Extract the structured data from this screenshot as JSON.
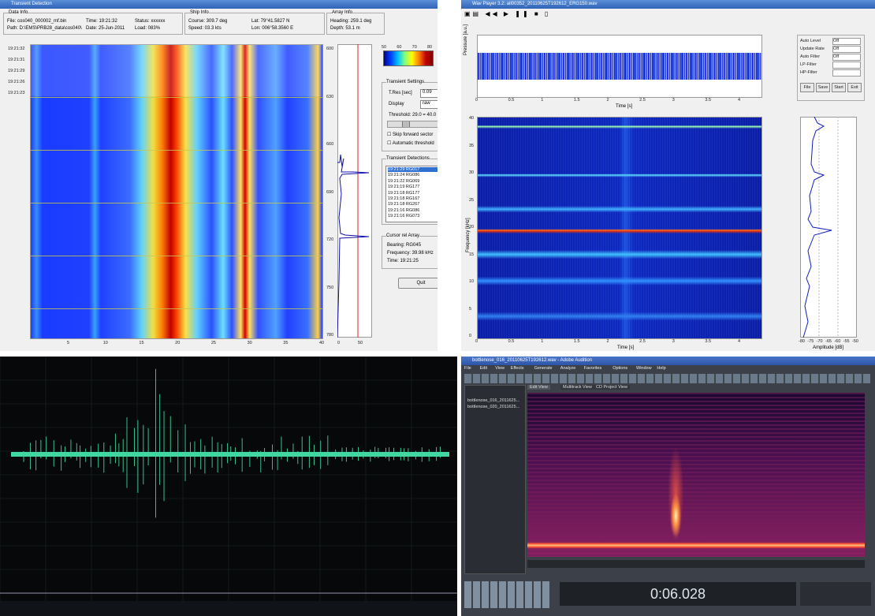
{
  "transient_window": {
    "title": "Transient Detection",
    "data_info": {
      "heading": "Data Info",
      "file": "File: cos040_000002_mf.bin",
      "path": "Path: D:\\EMS\\PRB28_data\\cos040\\",
      "time": "Time: 19:21:32",
      "date": "Date: 25-Jun-2011",
      "status": "Status: xxxxxx",
      "load": "Load: 083%"
    },
    "ship_info": {
      "heading": "Ship Info",
      "course": "Course: 309.7 deg",
      "speed": "Speed: 03.3 kts",
      "lat": "Lat: 79°41.5827 N",
      "lon": "Lon: 006°58.3560 E"
    },
    "array_info": {
      "heading": "Array Info",
      "array_heading": "Heading: 259.1 deg",
      "depth": "Depth: 53.1 m"
    },
    "time_labels": [
      "19:21:32",
      "19:21:31",
      "19:21:29",
      "19:21:26",
      "19:21:23"
    ],
    "x_ticks": [
      "5",
      "10",
      "15",
      "20",
      "25",
      "30",
      "35",
      "40"
    ],
    "range_ticks": [
      "600",
      "630",
      "660",
      "690",
      "720",
      "750",
      "780"
    ],
    "side_ticks": [
      "0",
      "50"
    ],
    "colorbar_ticks": [
      "50",
      "60",
      "70",
      "80"
    ],
    "transient_settings": {
      "heading": "Transient Settings",
      "tres_label": "T.Res [sec]",
      "tres_value": "0.09",
      "display_label": "Display",
      "display_value": "raw",
      "threshold": "Threshold: 29.0 = 40.0",
      "skip": "Skip forward sector",
      "auto": "Automatic threshold"
    },
    "detections": {
      "heading": "Transient Detections",
      "items": [
        "19:21:29 RG017",
        "19:21:24 RG086",
        "19:21:22 RG069",
        "19:21:19 RG177",
        "19:21:18 RG177",
        "19:21:18 RG167",
        "19:21:18 RG267",
        "19:21:16 RG086",
        "19:21:16 RG073"
      ]
    },
    "cursor": {
      "heading": "Cursor rel Array",
      "bearing": "Bearing: RG045",
      "frequency": "Frequency: 39.98 kHz",
      "time": "Time: 19:21:25"
    },
    "quit": "Quit"
  },
  "wav_player": {
    "title": "Wav Player 3.2: all00352_20110625T192612_ERG150.wav",
    "wave_y_label": "Pressure [a.u.]",
    "wave_x_label": "Time [s]",
    "wave_x_ticks": [
      "0",
      "0.5",
      "1",
      "1.5",
      "2",
      "2.5",
      "3",
      "3.5",
      "4"
    ],
    "spec_y_label": "Frequency [kHz]",
    "spec_y_ticks": [
      "40",
      "35",
      "30",
      "25",
      "20",
      "15",
      "10",
      "5",
      "0"
    ],
    "spec_x_label": "Time [s]",
    "spec_x_ticks": [
      "0",
      "0.5",
      "1",
      "1.5",
      "2",
      "2.5",
      "3",
      "3.5",
      "4"
    ],
    "amp_x_label": "Amplitude [dB]",
    "amp_x_ticks": [
      "-80",
      "-75",
      "-70",
      "-65",
      "-60",
      "-55",
      "-50"
    ],
    "controls": [
      {
        "label": "Auto Level",
        "value": "Off"
      },
      {
        "label": "Update Rate",
        "value": "Off"
      },
      {
        "label": "Auto Filter",
        "value": "Off"
      },
      {
        "label": "LP-Filter",
        "value": ""
      },
      {
        "label": "HP-Filter",
        "value": ""
      }
    ],
    "buttons": [
      "File",
      "Save",
      "Start",
      "Exit"
    ]
  },
  "audition": {
    "title": "bottlenose_016_20110625T192612.wav - Adobe Audition",
    "menu": [
      "File",
      "Edit",
      "View",
      "Effects",
      "Generate",
      "Analyze",
      "Favorites",
      "Options",
      "Window",
      "Help"
    ],
    "tabs": [
      "Edit View",
      "Multitrack View",
      "CD Project View"
    ],
    "files": [
      "bottlenose_016_2011625...",
      "bottlenose_020_2011625..."
    ],
    "time_display": "0:06.028"
  }
}
